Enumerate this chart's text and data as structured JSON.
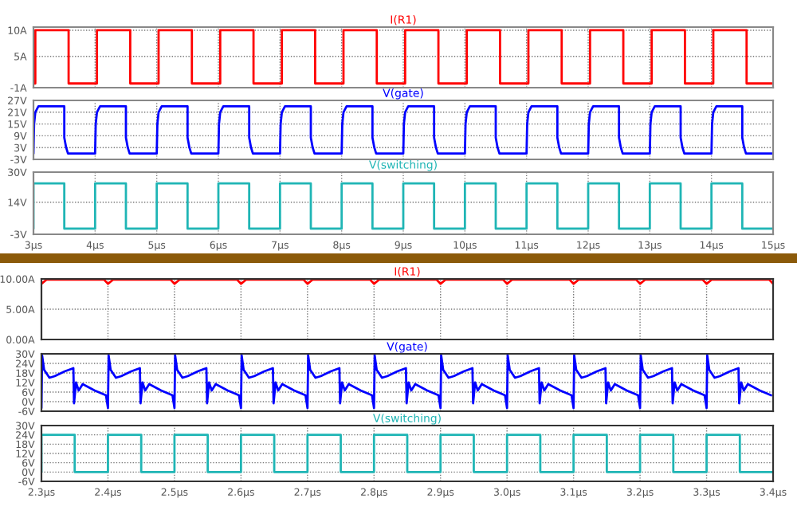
{
  "chart_data": [
    {
      "type": "line",
      "xlim": [
        3,
        15
      ],
      "xticks": [
        3,
        4,
        5,
        6,
        7,
        8,
        9,
        10,
        11,
        12,
        13,
        14,
        15
      ],
      "ylim": [
        -1,
        10.6
      ],
      "yticks": [
        {
          "value": -1,
          "label": "-1A"
        },
        {
          "value": 5,
          "label": "5A"
        },
        {
          "value": 10,
          "label": "10A"
        }
      ],
      "grid": true,
      "tick_labels": "y",
      "x": [
        3,
        3.03,
        3.03,
        3.57,
        3.57,
        4,
        4.03,
        4.03,
        4.57,
        4.57,
        5,
        5.03,
        5.03,
        5.57,
        5.57,
        6,
        6.03,
        6.03,
        6.57,
        6.57,
        7,
        7.03,
        7.03,
        7.57,
        7.57,
        8,
        8.03,
        8.03,
        8.57,
        8.57,
        9,
        9.03,
        9.03,
        9.57,
        9.57,
        10,
        10.03,
        10.03,
        10.57,
        10.57,
        11,
        11.03,
        11.03,
        11.57,
        11.57,
        12,
        12.03,
        12.03,
        12.57,
        12.57,
        13,
        13.03,
        13.03,
        13.57,
        13.57,
        14,
        14.03,
        14.03,
        14.57,
        14.57,
        15
      ],
      "series": [
        {
          "name": "I(R1)",
          "color": "#ff0000",
          "values": [
            -0.2,
            -0.2,
            10,
            10,
            -0.2,
            -0.2,
            -0.2,
            10,
            10,
            -0.2,
            -0.2,
            -0.2,
            10,
            10,
            -0.2,
            -0.2,
            -0.2,
            10,
            10,
            -0.2,
            -0.2,
            -0.2,
            10,
            10,
            -0.2,
            -0.2,
            -0.2,
            10,
            10,
            -0.2,
            -0.2,
            -0.2,
            10,
            10,
            -0.2,
            -0.2,
            -0.2,
            10,
            10,
            -0.2,
            -0.2,
            -0.2,
            10,
            10,
            -0.2,
            -0.2,
            -0.2,
            10,
            10,
            -0.2,
            -0.2,
            -0.2,
            10,
            10,
            -0.2,
            -0.2,
            -0.2,
            10,
            10,
            -0.2,
            -0.2
          ]
        }
      ]
    },
    {
      "type": "line",
      "xlim": [
        3,
        15
      ],
      "xticks": [
        3,
        4,
        5,
        6,
        7,
        8,
        9,
        10,
        11,
        12,
        13,
        14,
        15
      ],
      "ylim": [
        -3,
        27
      ],
      "yticks": [
        {
          "value": -3,
          "label": "-3V"
        },
        {
          "value": 3,
          "label": "3V"
        },
        {
          "value": 9,
          "label": "9V"
        },
        {
          "value": 15,
          "label": "15V"
        },
        {
          "value": 21,
          "label": "21V"
        },
        {
          "value": 27,
          "label": "27V"
        }
      ],
      "grid": true,
      "tick_labels": "y",
      "x": [
        3,
        3.01,
        3.03,
        3.08,
        3.5,
        3.5,
        3.53,
        3.56,
        4,
        4.01,
        4.03,
        4.08,
        4.5,
        4.5,
        4.53,
        4.56,
        5,
        5.01,
        5.03,
        5.08,
        5.5,
        5.5,
        5.53,
        5.56,
        6,
        6.01,
        6.03,
        6.08,
        6.5,
        6.5,
        6.53,
        6.56,
        7,
        7.01,
        7.03,
        7.08,
        7.5,
        7.5,
        7.53,
        7.56,
        8,
        8.01,
        8.03,
        8.08,
        8.5,
        8.5,
        8.53,
        8.56,
        9,
        9.01,
        9.03,
        9.08,
        9.5,
        9.5,
        9.53,
        9.56,
        10,
        10.01,
        10.03,
        10.08,
        10.5,
        10.5,
        10.53,
        10.56,
        11,
        11.01,
        11.03,
        11.08,
        11.5,
        11.5,
        11.53,
        11.56,
        12,
        12.01,
        12.03,
        12.08,
        12.5,
        12.5,
        12.53,
        12.56,
        13,
        13.01,
        13.03,
        13.08,
        13.5,
        13.5,
        13.53,
        13.56,
        14,
        14.01,
        14.03,
        14.08,
        14.5,
        14.5,
        14.53,
        14.56,
        15
      ],
      "series": [
        {
          "name": "V(gate)",
          "color": "#0000ff",
          "values": [
            0,
            15,
            21,
            24,
            24,
            8,
            3,
            0,
            0,
            15,
            21,
            24,
            24,
            8,
            3,
            0,
            0,
            15,
            21,
            24,
            24,
            8,
            3,
            0,
            0,
            15,
            21,
            24,
            24,
            8,
            3,
            0,
            0,
            15,
            21,
            24,
            24,
            8,
            3,
            0,
            0,
            15,
            21,
            24,
            24,
            8,
            3,
            0,
            0,
            15,
            21,
            24,
            24,
            8,
            3,
            0,
            0,
            15,
            21,
            24,
            24,
            8,
            3,
            0,
            0,
            15,
            21,
            24,
            24,
            8,
            3,
            0,
            0,
            15,
            21,
            24,
            24,
            8,
            3,
            0,
            0,
            15,
            21,
            24,
            24,
            8,
            3,
            0,
            0,
            15,
            21,
            24,
            24,
            8,
            3,
            0,
            0
          ]
        }
      ]
    },
    {
      "type": "line",
      "xlim": [
        3,
        15
      ],
      "xticks": [
        {
          "value": 3,
          "label": "3µs"
        },
        {
          "value": 4,
          "label": "4µs"
        },
        {
          "value": 5,
          "label": "5µs"
        },
        {
          "value": 6,
          "label": "6µs"
        },
        {
          "value": 7,
          "label": "7µs"
        },
        {
          "value": 8,
          "label": "8µs"
        },
        {
          "value": 9,
          "label": "9µs"
        },
        {
          "value": 10,
          "label": "10µs"
        },
        {
          "value": 11,
          "label": "11µs"
        },
        {
          "value": 12,
          "label": "12µs"
        },
        {
          "value": 13,
          "label": "13µs"
        },
        {
          "value": 14,
          "label": "14µs"
        },
        {
          "value": 15,
          "label": "15µs"
        }
      ],
      "ylim": [
        -3,
        30
      ],
      "yticks": [
        {
          "value": -3,
          "label": "-3V"
        },
        {
          "value": 14,
          "label": "14V"
        },
        {
          "value": 30,
          "label": "30V"
        }
      ],
      "grid": true,
      "x": [
        3,
        3,
        3.5,
        3.5,
        4,
        4,
        4.5,
        4.5,
        5,
        5,
        5.5,
        5.5,
        6,
        6,
        6.5,
        6.5,
        7,
        7,
        7.5,
        7.5,
        8,
        8,
        8.5,
        8.5,
        9,
        9,
        9.5,
        9.5,
        10,
        10,
        10.5,
        10.5,
        11,
        11,
        11.5,
        11.5,
        12,
        12,
        12.5,
        12.5,
        13,
        13,
        13.5,
        13.5,
        14,
        14,
        14.5,
        14.5,
        15
      ],
      "series": [
        {
          "name": "V(switching)",
          "color": "#1fb5b5",
          "values": [
            0,
            24,
            24,
            0,
            0,
            24,
            24,
            0,
            0,
            24,
            24,
            0,
            0,
            24,
            24,
            0,
            0,
            24,
            24,
            0,
            0,
            24,
            24,
            0,
            0,
            24,
            24,
            0,
            0,
            24,
            24,
            0,
            0,
            24,
            24,
            0,
            0,
            24,
            24,
            0,
            0,
            24,
            24,
            0,
            0,
            24,
            24,
            0,
            0
          ]
        }
      ]
    },
    {
      "type": "line",
      "xlim": [
        2.3,
        3.4
      ],
      "xticks": [
        2.3,
        2.4,
        2.5,
        2.6,
        2.7,
        2.8,
        2.9,
        3.0,
        3.1,
        3.2,
        3.3,
        3.4
      ],
      "ylim": [
        0,
        10
      ],
      "yticks": [
        {
          "value": 0,
          "label": "0.00A"
        },
        {
          "value": 5,
          "label": "5.00A"
        },
        {
          "value": 10,
          "label": "10.00A"
        }
      ],
      "grid": true,
      "tick_labels": "y",
      "x": [
        2.3,
        2.308,
        2.394,
        2.4,
        2.408,
        2.494,
        2.5,
        2.508,
        2.594,
        2.6,
        2.608,
        2.694,
        2.7,
        2.708,
        2.794,
        2.8,
        2.808,
        2.894,
        2.9,
        2.908,
        2.994,
        3.0,
        3.008,
        3.094,
        3.1,
        3.108,
        3.194,
        3.2,
        3.208,
        3.294,
        3.3,
        3.308,
        3.394,
        3.4
      ],
      "series": [
        {
          "name": "I(R1)",
          "color": "#ff0000",
          "values": [
            9.2,
            9.9,
            9.9,
            9.2,
            9.9,
            9.9,
            9.2,
            9.9,
            9.9,
            9.2,
            9.9,
            9.9,
            9.2,
            9.9,
            9.9,
            9.2,
            9.9,
            9.9,
            9.2,
            9.9,
            9.9,
            9.2,
            9.9,
            9.9,
            9.2,
            9.9,
            9.9,
            9.2,
            9.9,
            9.9,
            9.2,
            9.9,
            9.9,
            9.2
          ]
        }
      ]
    },
    {
      "type": "line",
      "xlim": [
        2.3,
        3.4
      ],
      "xticks": [
        2.3,
        2.4,
        2.5,
        2.6,
        2.7,
        2.8,
        2.9,
        3.0,
        3.1,
        3.2,
        3.3,
        3.4
      ],
      "ylim": [
        -6,
        30
      ],
      "yticks": [
        {
          "value": -6,
          "label": "-6V"
        },
        {
          "value": 0,
          "label": "0V"
        },
        {
          "value": 6,
          "label": "6V"
        },
        {
          "value": 12,
          "label": "12V"
        },
        {
          "value": 18,
          "label": "18V"
        },
        {
          "value": 24,
          "label": "24V"
        },
        {
          "value": 30,
          "label": "30V"
        }
      ],
      "grid": true,
      "tick_labels": "y",
      "x": [
        2.3,
        2.301,
        2.304,
        2.312,
        2.32,
        2.335,
        2.348,
        2.349,
        2.352,
        2.356,
        2.362,
        2.38,
        2.397,
        2.4,
        2.401,
        2.404,
        2.412,
        2.42,
        2.435,
        2.448,
        2.449,
        2.452,
        2.456,
        2.462,
        2.48,
        2.497,
        2.5,
        2.501,
        2.504,
        2.512,
        2.52,
        2.535,
        2.548,
        2.549,
        2.552,
        2.556,
        2.562,
        2.58,
        2.597,
        2.6,
        2.601,
        2.604,
        2.612,
        2.62,
        2.635,
        2.648,
        2.649,
        2.652,
        2.656,
        2.662,
        2.68,
        2.697,
        2.7,
        2.701,
        2.704,
        2.712,
        2.72,
        2.735,
        2.748,
        2.749,
        2.752,
        2.756,
        2.762,
        2.78,
        2.797,
        2.8,
        2.801,
        2.804,
        2.812,
        2.82,
        2.835,
        2.848,
        2.849,
        2.852,
        2.856,
        2.862,
        2.88,
        2.897,
        2.9,
        2.901,
        2.904,
        2.912,
        2.92,
        2.935,
        2.948,
        2.949,
        2.952,
        2.956,
        2.962,
        2.98,
        2.997,
        3.0,
        3.001,
        3.004,
        3.012,
        3.02,
        3.035,
        3.048,
        3.049,
        3.052,
        3.056,
        3.062,
        3.08,
        3.097,
        3.1,
        3.101,
        3.104,
        3.112,
        3.12,
        3.135,
        3.148,
        3.149,
        3.152,
        3.156,
        3.162,
        3.18,
        3.197,
        3.2,
        3.201,
        3.204,
        3.212,
        3.22,
        3.235,
        3.248,
        3.249,
        3.252,
        3.256,
        3.262,
        3.28,
        3.297,
        3.3,
        3.301,
        3.304,
        3.312,
        3.32,
        3.335,
        3.348,
        3.349,
        3.352,
        3.356,
        3.362,
        3.38,
        3.397
      ],
      "series": [
        {
          "name": "V(gate)",
          "color": "#0000ff",
          "values": [
            -4,
            29,
            20,
            15,
            16,
            19,
            21,
            -1,
            12,
            7,
            11,
            7,
            4,
            -4,
            29,
            20,
            15,
            16,
            19,
            21,
            -1,
            12,
            7,
            11,
            7,
            4,
            -4,
            29,
            20,
            15,
            16,
            19,
            21,
            -1,
            12,
            7,
            11,
            7,
            4,
            -4,
            29,
            20,
            15,
            16,
            19,
            21,
            -1,
            12,
            7,
            11,
            7,
            4,
            -4,
            29,
            20,
            15,
            16,
            19,
            21,
            -1,
            12,
            7,
            11,
            7,
            4,
            -4,
            29,
            20,
            15,
            16,
            19,
            21,
            -1,
            12,
            7,
            11,
            7,
            4,
            -4,
            29,
            20,
            15,
            16,
            19,
            21,
            -1,
            12,
            7,
            11,
            7,
            4,
            -4,
            29,
            20,
            15,
            16,
            19,
            21,
            -1,
            12,
            7,
            11,
            7,
            4,
            -4,
            29,
            20,
            15,
            16,
            19,
            21,
            -1,
            12,
            7,
            11,
            7,
            4,
            -4,
            29,
            20,
            15,
            16,
            19,
            21,
            -1,
            12,
            7,
            11,
            7,
            4,
            -4,
            29,
            20,
            15,
            16,
            19,
            21,
            -1,
            12,
            7,
            11,
            7,
            4
          ]
        }
      ]
    },
    {
      "type": "line",
      "xlim": [
        2.3,
        3.4
      ],
      "xticks": [
        {
          "value": 2.3,
          "label": "2.3µs"
        },
        {
          "value": 2.4,
          "label": "2.4µs"
        },
        {
          "value": 2.5,
          "label": "2.5µs"
        },
        {
          "value": 2.6,
          "label": "2.6µs"
        },
        {
          "value": 2.7,
          "label": "2.7µs"
        },
        {
          "value": 2.8,
          "label": "2.8µs"
        },
        {
          "value": 2.9,
          "label": "2.9µs"
        },
        {
          "value": 3.0,
          "label": "3.0µs"
        },
        {
          "value": 3.1,
          "label": "3.1µs"
        },
        {
          "value": 3.2,
          "label": "3.2µs"
        },
        {
          "value": 3.3,
          "label": "3.3µs"
        },
        {
          "value": 3.4,
          "label": "3.4µs"
        }
      ],
      "ylim": [
        -6,
        30
      ],
      "yticks": [
        {
          "value": -6,
          "label": "-6V"
        },
        {
          "value": 0,
          "label": "0V"
        },
        {
          "value": 6,
          "label": "6V"
        },
        {
          "value": 12,
          "label": "12V"
        },
        {
          "value": 18,
          "label": "18V"
        },
        {
          "value": 24,
          "label": "24V"
        },
        {
          "value": 30,
          "label": "30V"
        }
      ],
      "grid": true,
      "x": [
        2.3,
        2.3,
        2.35,
        2.35,
        2.4,
        2.4,
        2.45,
        2.45,
        2.5,
        2.5,
        2.55,
        2.55,
        2.6,
        2.6,
        2.65,
        2.65,
        2.7,
        2.7,
        2.75,
        2.75,
        2.8,
        2.8,
        2.85,
        2.85,
        2.9,
        2.9,
        2.95,
        2.95,
        3.0,
        3.0,
        3.05,
        3.05,
        3.1,
        3.1,
        3.15,
        3.15,
        3.2,
        3.2,
        3.25,
        3.25,
        3.3,
        3.3,
        3.35,
        3.35,
        3.4
      ],
      "series": [
        {
          "name": "V(switching)",
          "color": "#1fb5b5",
          "values": [
            0,
            24,
            24,
            0,
            0,
            24,
            24,
            0,
            0,
            24,
            24,
            0,
            0,
            24,
            24,
            0,
            0,
            24,
            24,
            0,
            0,
            24,
            24,
            0,
            0,
            24,
            24,
            0,
            0,
            24,
            24,
            0,
            0,
            24,
            24,
            0,
            0,
            24,
            24,
            0,
            0,
            24,
            24,
            0,
            0
          ]
        }
      ]
    }
  ]
}
